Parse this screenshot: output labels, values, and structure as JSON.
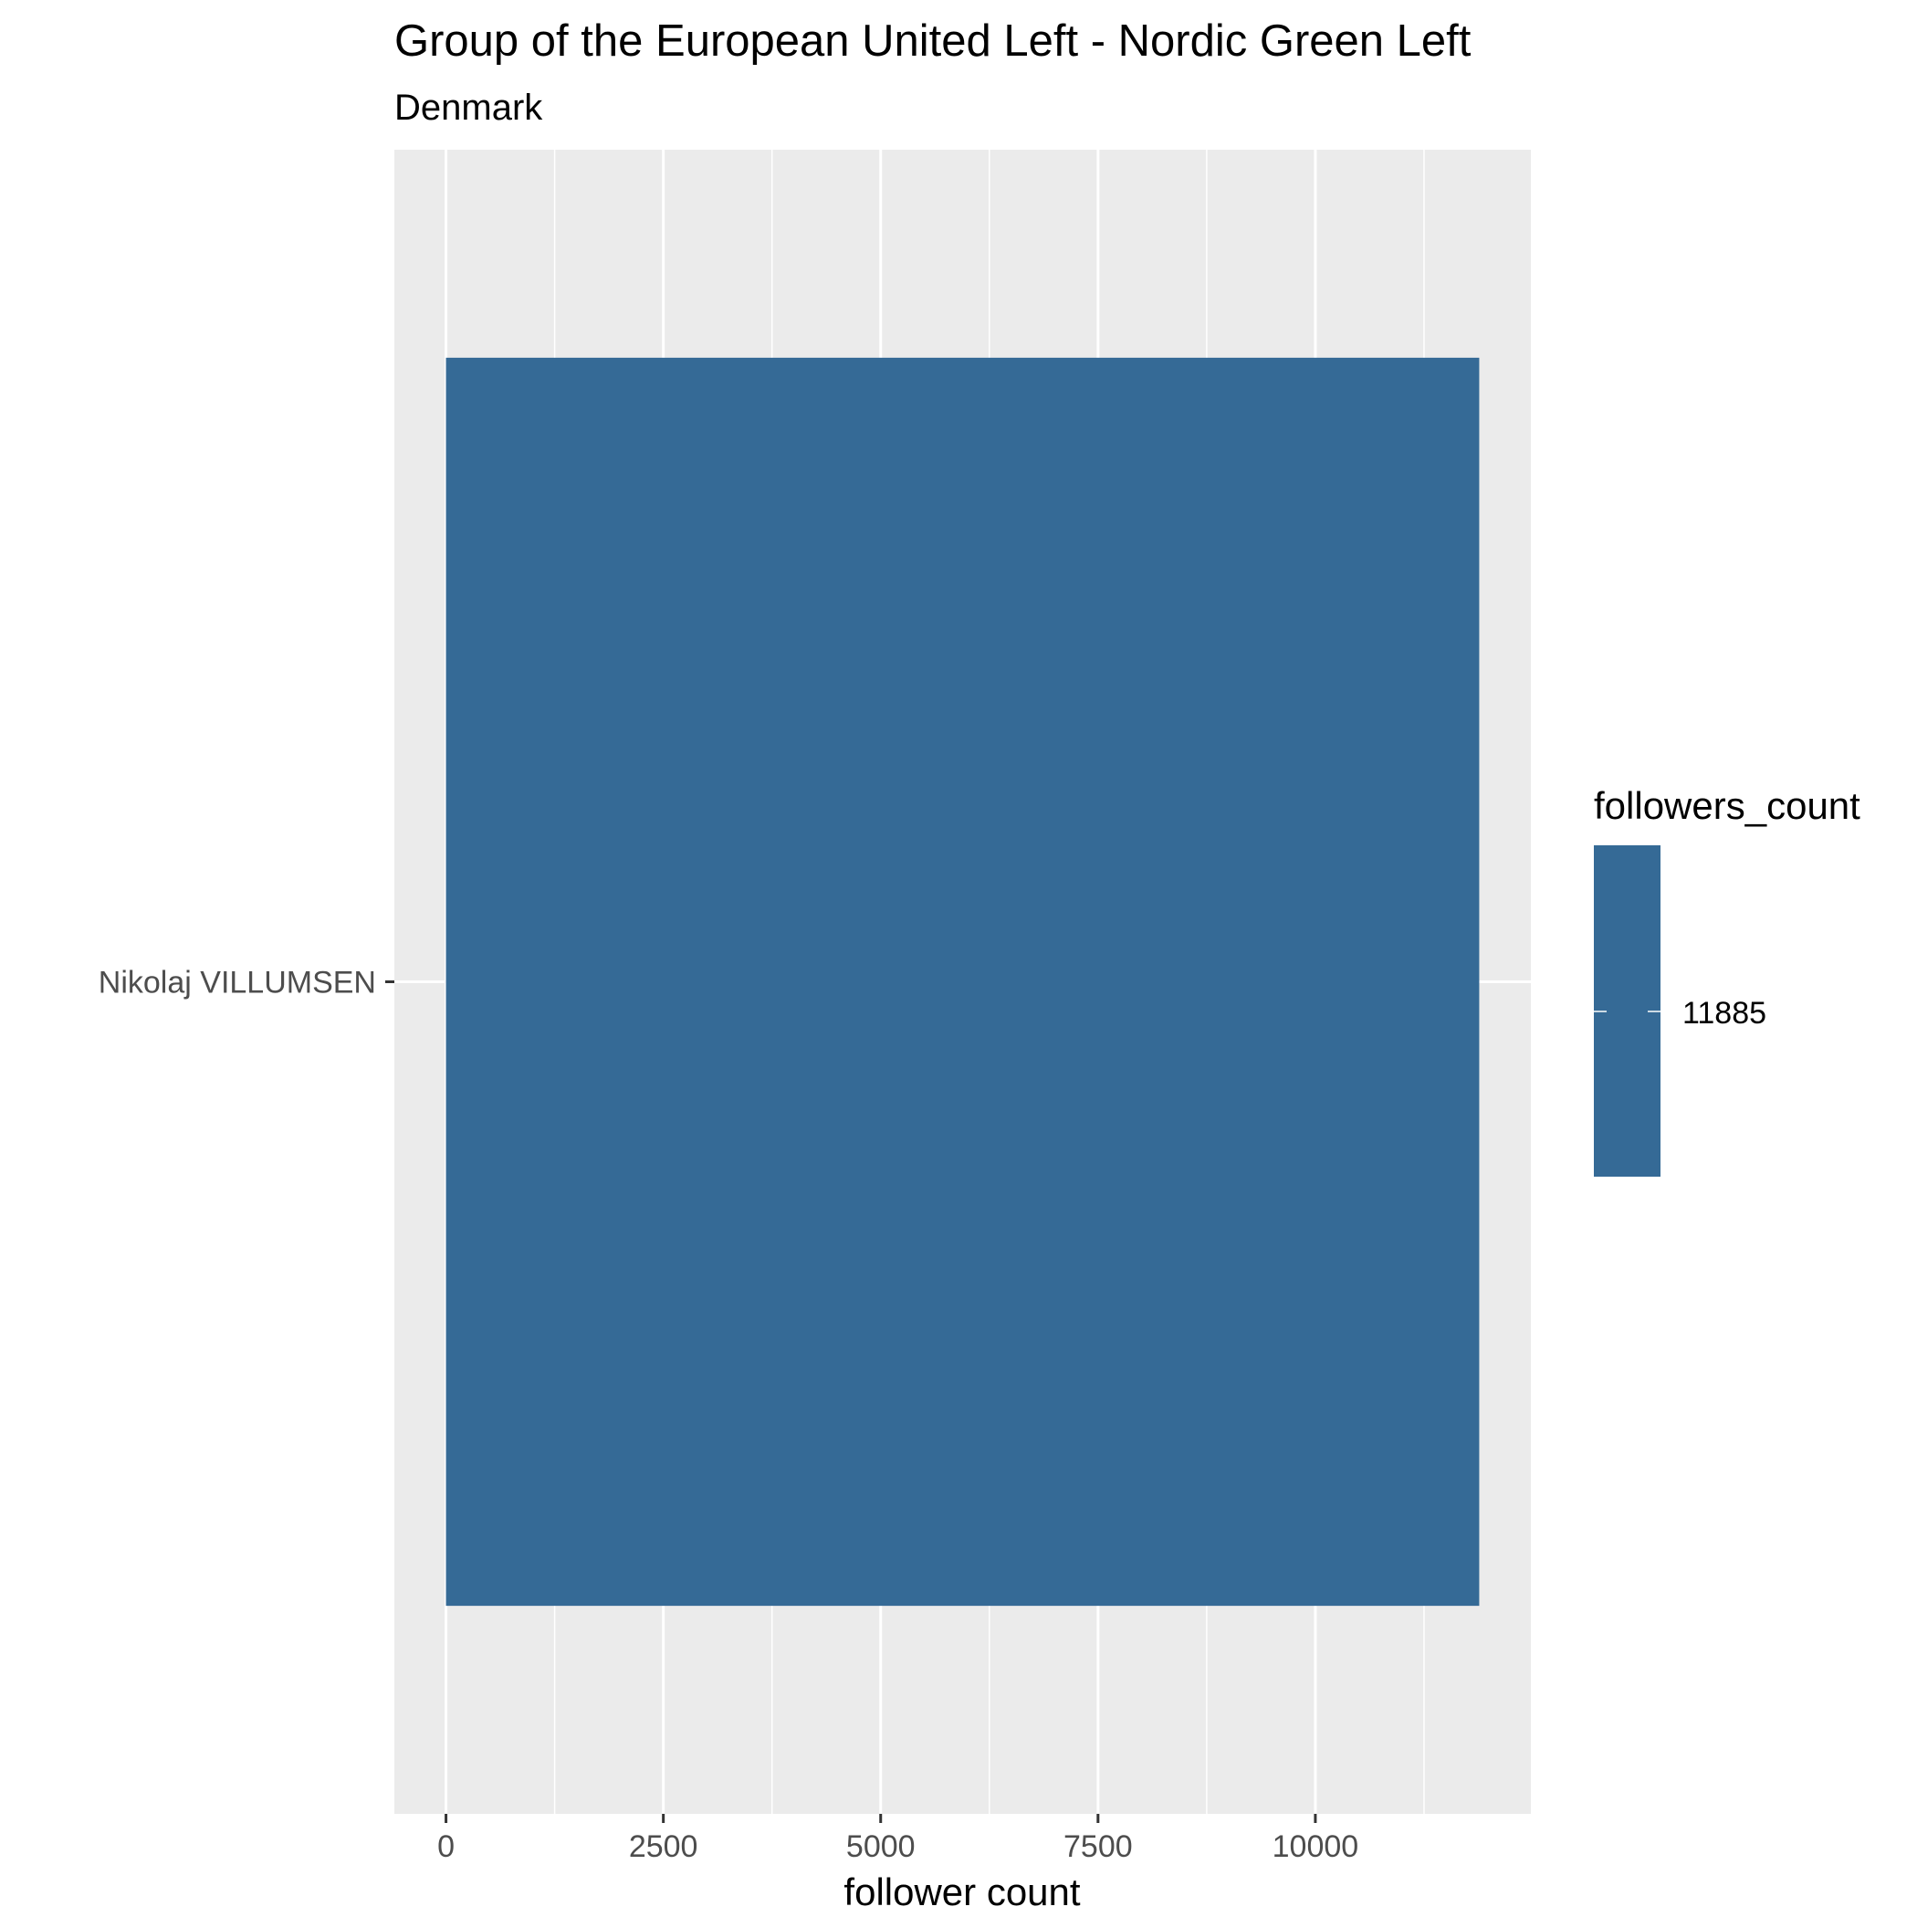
{
  "chart_data": {
    "type": "bar",
    "orientation": "horizontal",
    "title": "Group of the European United Left - Nordic Green Left",
    "subtitle": "Denmark",
    "xlabel": "follower count",
    "ylabel": "",
    "categories": [
      "Nikolaj VILLUMSEN"
    ],
    "values": [
      11885
    ],
    "x_ticks": [
      0,
      2500,
      5000,
      7500,
      10000
    ],
    "x_tick_labels": [
      "0",
      "2500",
      "5000",
      "7500",
      "10000"
    ],
    "xlim": [
      -594,
      12479
    ],
    "grid": true,
    "bar_color": "#356a96",
    "panel_background": "#ebebeb",
    "legend": {
      "title": "followers_count",
      "labels": [
        "11885"
      ],
      "position": "right"
    }
  }
}
